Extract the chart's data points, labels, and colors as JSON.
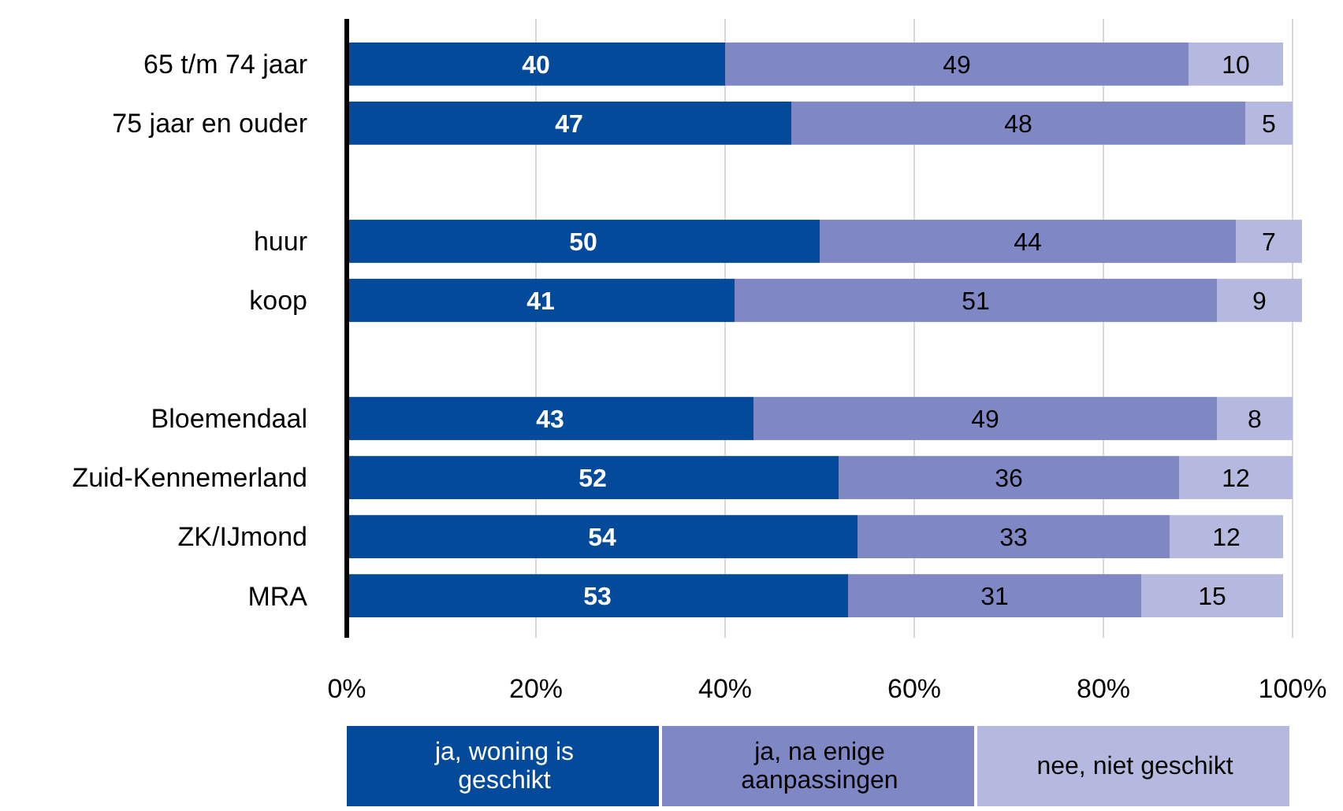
{
  "chart_data": {
    "type": "bar",
    "orientation": "horizontal",
    "stacked": true,
    "data_labels": true,
    "grid": "x",
    "legend": "bottom",
    "categories": [
      "65 t/m 74 jaar",
      "75 jaar en ouder",
      null,
      "huur",
      "koop",
      null,
      "Bloemendaal",
      "Zuid-Kennemerland",
      "ZK/IJmond",
      "MRA"
    ],
    "series": [
      {
        "name": "ja, woning is geschikt",
        "color": "#034a9a",
        "values": [
          40,
          47,
          null,
          50,
          41,
          null,
          43,
          52,
          54,
          53
        ]
      },
      {
        "name": "ja, na enige aanpassingen",
        "color": "#7f87c4",
        "values": [
          49,
          48,
          null,
          44,
          51,
          null,
          49,
          36,
          33,
          31
        ]
      },
      {
        "name": "nee, niet geschikt",
        "color": "#b5b9e0",
        "values": [
          10,
          5,
          null,
          7,
          9,
          null,
          8,
          12,
          12,
          15
        ]
      }
    ],
    "xlim": [
      0,
      101
    ],
    "xticks": [
      {
        "value": 0,
        "label": "0%"
      },
      {
        "value": 20,
        "label": "20%"
      },
      {
        "value": 40,
        "label": "40%"
      },
      {
        "value": 60,
        "label": "60%"
      },
      {
        "value": 80,
        "label": "80%"
      },
      {
        "value": 100,
        "label": "100%"
      }
    ]
  }
}
